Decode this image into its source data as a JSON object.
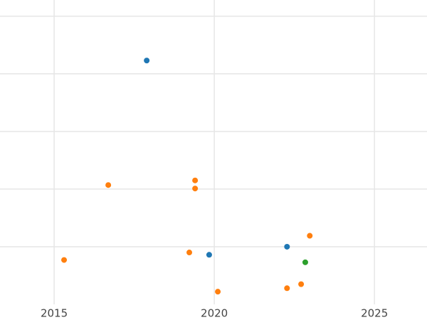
{
  "chart_data": {
    "type": "scatter",
    "xlim": [
      2013.31,
      2026.64
    ],
    "xticks": [
      2015,
      2020,
      2025
    ],
    "ylim": [
      0,
      5.28
    ],
    "yticks": [
      1,
      2,
      3,
      4,
      5
    ],
    "grid": true,
    "series": [
      {
        "color": "#1f77b4",
        "x": [
          2017.89,
          2019.84,
          2022.27
        ],
        "values": [
          4.23,
          0.86,
          1.0
        ]
      },
      {
        "color": "#ff7f0e",
        "x": [
          2016.69,
          2019.4,
          2019.4,
          2015.31,
          2019.22,
          2022.98,
          2020.11,
          2022.27,
          2022.71
        ],
        "values": [
          2.07,
          2.15,
          2.01,
          0.77,
          0.9,
          1.19,
          0.22,
          0.28,
          0.35
        ]
      },
      {
        "color": "#2ca02c",
        "x": [
          2022.84
        ],
        "values": [
          0.73
        ]
      }
    ]
  }
}
